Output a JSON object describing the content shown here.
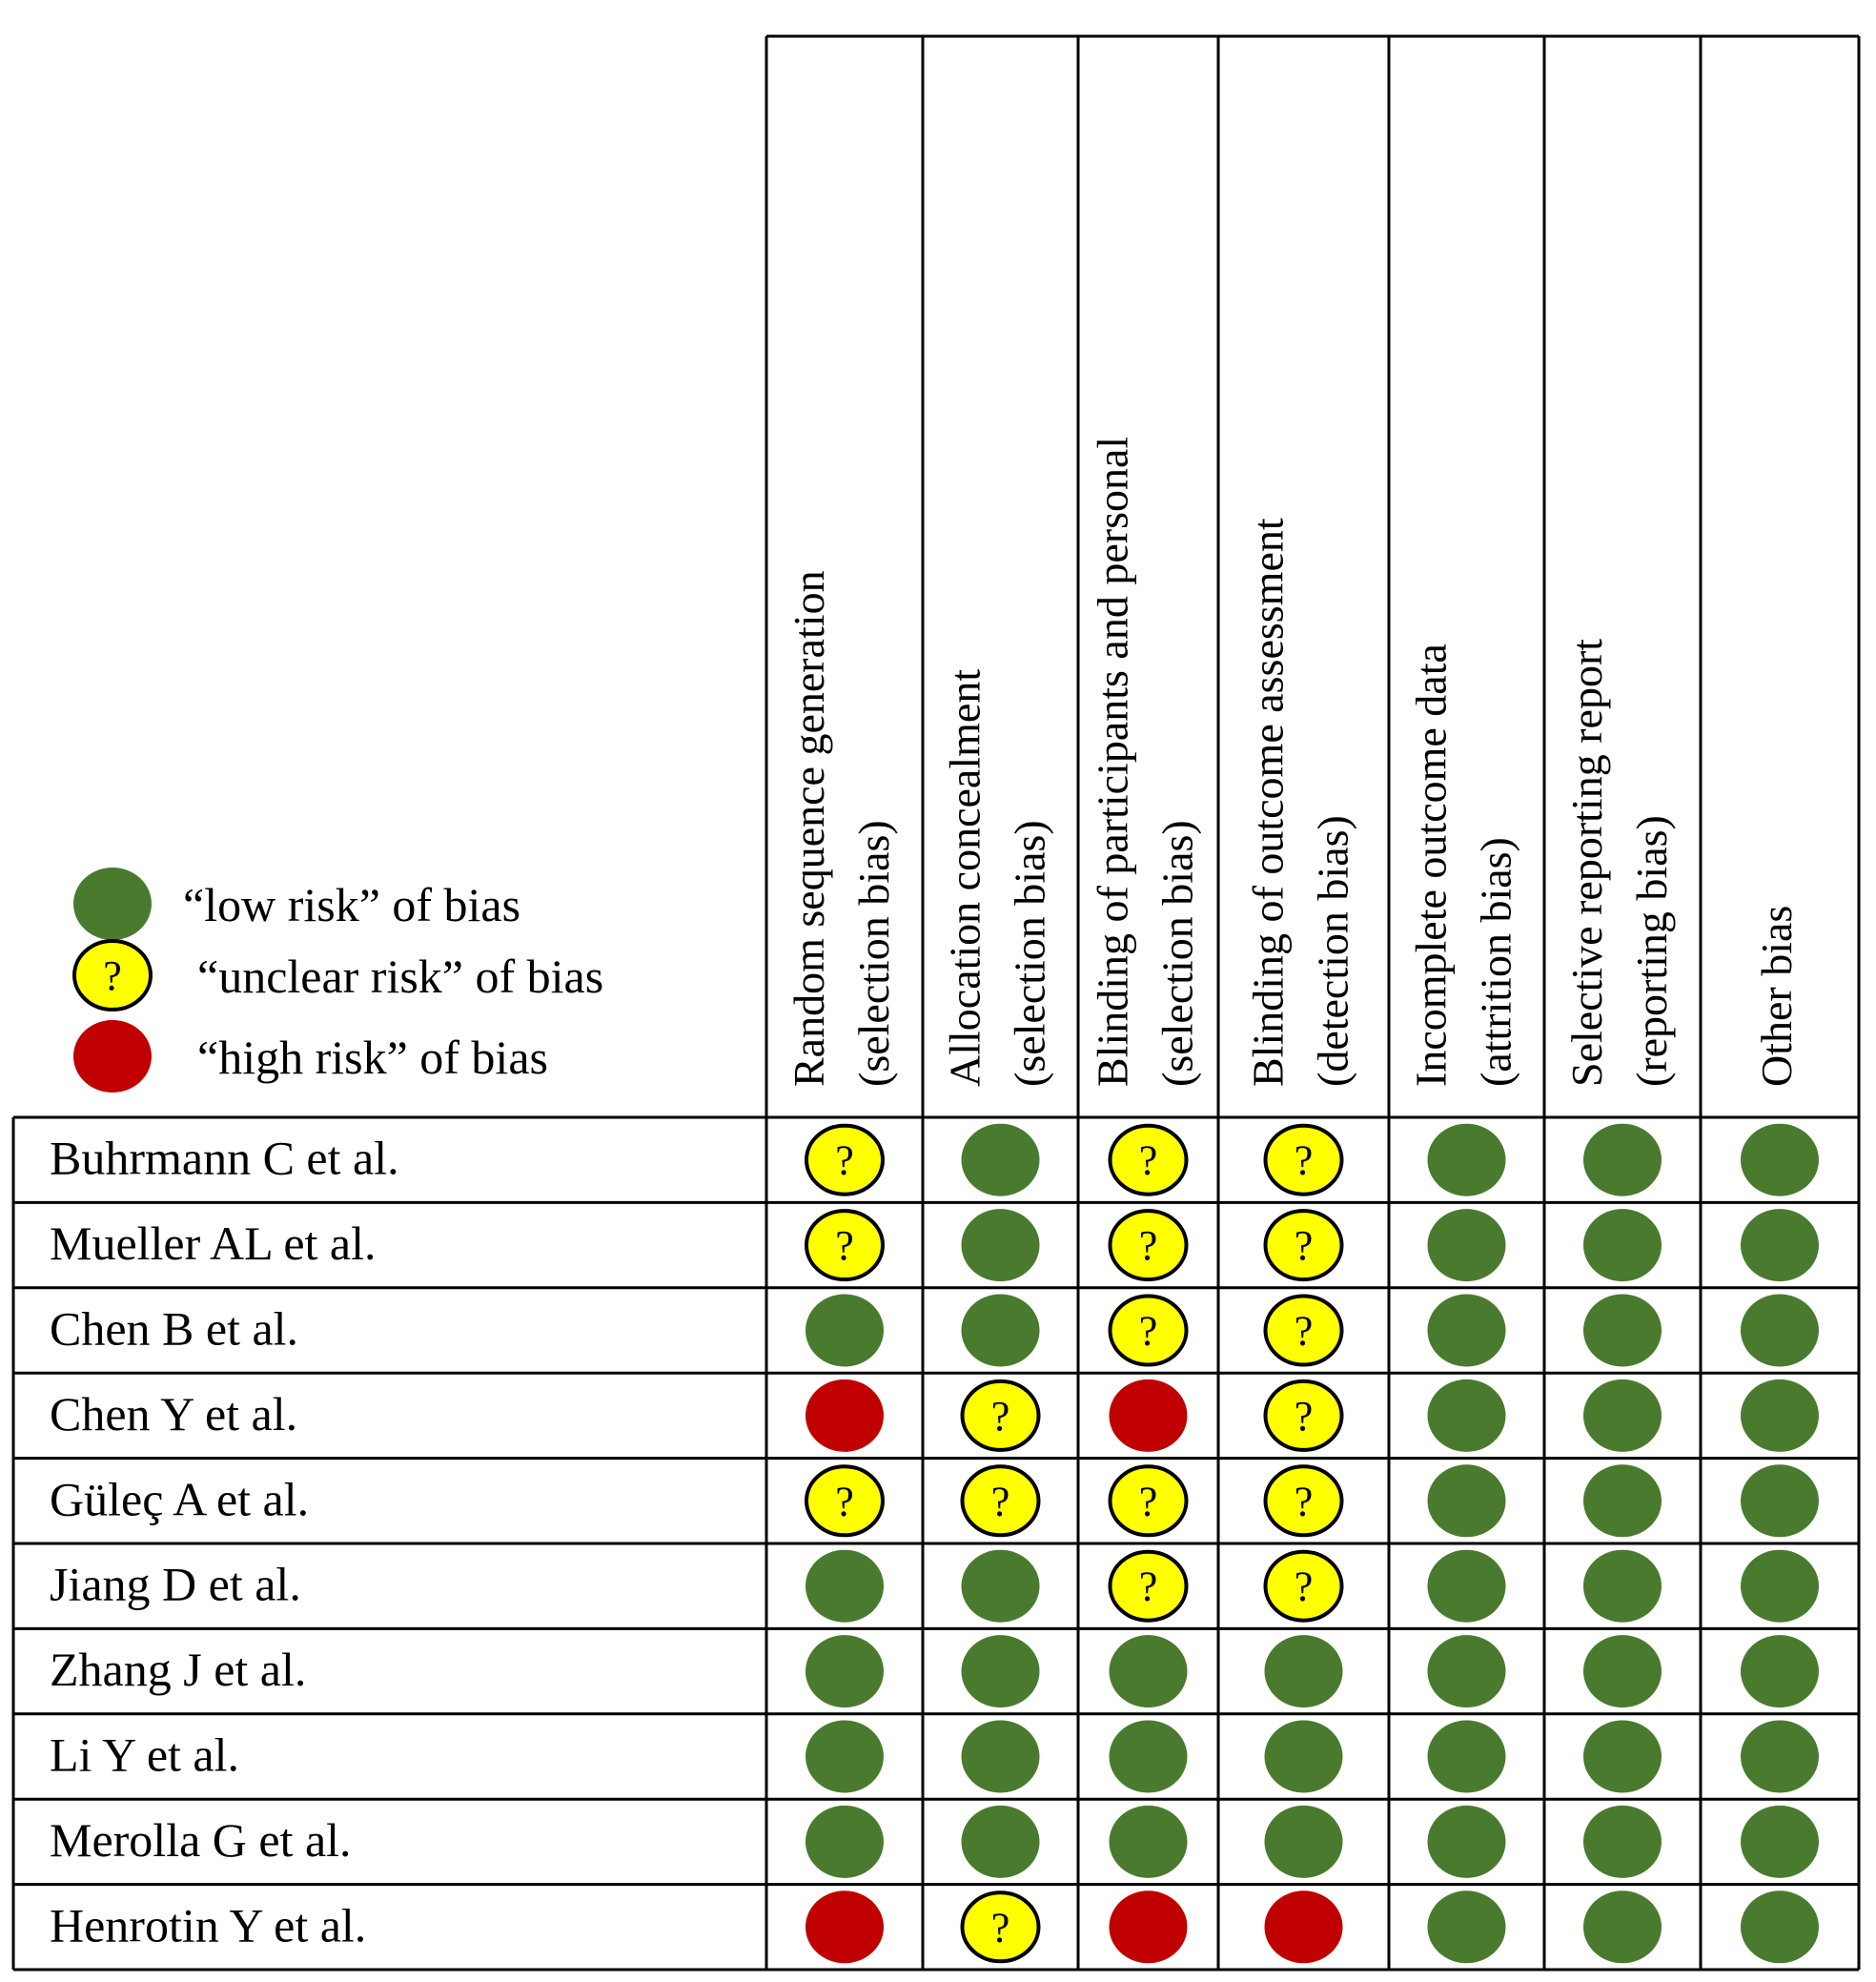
{
  "chart_data": {
    "type": "table",
    "title": "",
    "legend": {
      "placement": "top-left",
      "items": [
        {
          "key": "low",
          "label": "“low risk” of bias"
        },
        {
          "key": "unclear",
          "label": "“unclear risk” of bias"
        },
        {
          "key": "high",
          "label": "“high risk” of bias"
        }
      ]
    },
    "unclear_symbol": "?",
    "colors": {
      "low": "#4a7a2e",
      "unclear": "#ffff00",
      "high": "#c00000",
      "grid": "#000000"
    },
    "columns": [
      {
        "line1": "Random sequence generation",
        "line2": "(selection bias)"
      },
      {
        "line1": "Allocation concealment",
        "line2": "(selection bias)"
      },
      {
        "line1": "Blinding of participants and personal",
        "line2": "(selection bias)"
      },
      {
        "line1": "Blinding of outcome assessment",
        "line2": "(detection bias)"
      },
      {
        "line1": "Incomplete outcome data",
        "line2": "(attrition bias)"
      },
      {
        "line1": "Selective reporting report",
        "line2": "(reporting bias)"
      },
      {
        "line1": "Other bias",
        "line2": ""
      }
    ],
    "rows": [
      {
        "study": "Buhrmann C et al.",
        "ratings": [
          "unclear",
          "low",
          "unclear",
          "unclear",
          "low",
          "low",
          "low"
        ]
      },
      {
        "study": "Mueller AL et al.",
        "ratings": [
          "unclear",
          "low",
          "unclear",
          "unclear",
          "low",
          "low",
          "low"
        ]
      },
      {
        "study": "Chen B et al.",
        "ratings": [
          "low",
          "low",
          "unclear",
          "unclear",
          "low",
          "low",
          "low"
        ]
      },
      {
        "study": "Chen Y et al.",
        "ratings": [
          "high",
          "unclear",
          "high",
          "unclear",
          "low",
          "low",
          "low"
        ]
      },
      {
        "study": "Güleç A et al.",
        "ratings": [
          "unclear",
          "unclear",
          "unclear",
          "unclear",
          "low",
          "low",
          "low"
        ]
      },
      {
        "study": "Jiang D et al.",
        "ratings": [
          "low",
          "low",
          "unclear",
          "unclear",
          "low",
          "low",
          "low"
        ]
      },
      {
        "study": "Zhang J et al.",
        "ratings": [
          "low",
          "low",
          "low",
          "low",
          "low",
          "low",
          "low"
        ]
      },
      {
        "study": "Li Y et al.",
        "ratings": [
          "low",
          "low",
          "low",
          "low",
          "low",
          "low",
          "low"
        ]
      },
      {
        "study": "Merolla G et al.",
        "ratings": [
          "low",
          "low",
          "low",
          "low",
          "low",
          "low",
          "low"
        ]
      },
      {
        "study": "Henrotin Y et al.",
        "ratings": [
          "high",
          "unclear",
          "high",
          "high",
          "low",
          "low",
          "low"
        ]
      }
    ]
  }
}
